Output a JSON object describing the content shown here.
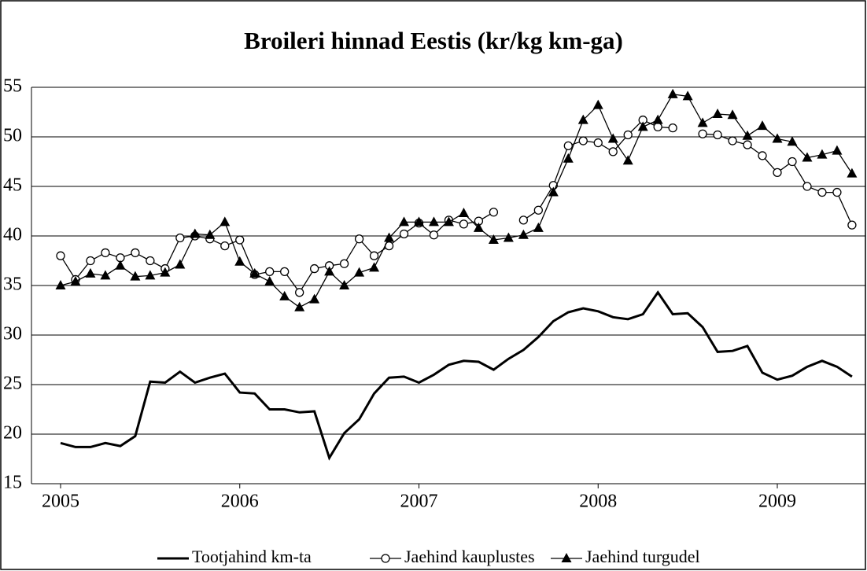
{
  "chart_data": {
    "type": "line",
    "title": "Broileri hinnad Eestis (kr/kg km-ga)",
    "categories": [
      "2005",
      null,
      null,
      null,
      null,
      null,
      null,
      null,
      null,
      null,
      null,
      null,
      "2006",
      null,
      null,
      null,
      null,
      null,
      null,
      null,
      null,
      null,
      null,
      null,
      "2007",
      null,
      null,
      null,
      null,
      null,
      null,
      null,
      null,
      null,
      null,
      null,
      "2008",
      null,
      null,
      null,
      null,
      null,
      null,
      null,
      null,
      null,
      null,
      null,
      "2009",
      null,
      null,
      null,
      null,
      null
    ],
    "series": [
      {
        "name": "Tootjahind km-ta",
        "color": "#000000",
        "marker": "none",
        "values": [
          19.1,
          18.7,
          18.7,
          19.1,
          18.8,
          19.8,
          25.3,
          25.2,
          26.3,
          25.2,
          25.7,
          26.1,
          24.2,
          24.1,
          22.5,
          22.5,
          22.2,
          22.3,
          17.6,
          20.1,
          21.5,
          24.1,
          25.7,
          25.8,
          25.2,
          26.0,
          27.0,
          27.4,
          27.3,
          26.5,
          27.6,
          28.5,
          29.8,
          31.4,
          32.3,
          32.7,
          32.4,
          31.8,
          31.6,
          32.1,
          34.3,
          32.1,
          32.2,
          30.8,
          28.3,
          28.4,
          28.9,
          26.2,
          25.5,
          25.9,
          26.8,
          27.4,
          26.8,
          25.8
        ]
      },
      {
        "name": "Jaehind kauplustes",
        "color": "#000000",
        "marker": "circle",
        "values": [
          38.0,
          35.6,
          37.5,
          38.3,
          37.8,
          38.3,
          37.5,
          36.7,
          39.8,
          40.0,
          39.7,
          39.0,
          39.6,
          36.1,
          36.4,
          36.4,
          34.3,
          36.7,
          37.0,
          37.2,
          39.7,
          38.0,
          39.0,
          40.2,
          41.3,
          40.1,
          41.6,
          41.2,
          41.5,
          42.4,
          null,
          41.6,
          42.6,
          45.1,
          49.1,
          49.6,
          49.4,
          48.5,
          50.2,
          51.7,
          51.0,
          50.9,
          null,
          50.3,
          50.2,
          49.6,
          49.2,
          48.1,
          46.4,
          47.5,
          45.0,
          44.4,
          44.4,
          41.1
        ]
      },
      {
        "name": "Jaehind turgudel",
        "color": "#000000",
        "marker": "triangle",
        "values": [
          35.0,
          35.4,
          36.2,
          36.0,
          37.0,
          35.9,
          36.0,
          36.3,
          37.1,
          40.2,
          40.1,
          41.4,
          37.4,
          36.2,
          35.4,
          33.9,
          32.8,
          33.6,
          36.4,
          35.0,
          36.3,
          36.8,
          39.8,
          41.4,
          41.4,
          41.4,
          41.4,
          42.3,
          40.8,
          39.6,
          39.8,
          40.1,
          40.8,
          44.4,
          47.8,
          51.7,
          53.2,
          49.8,
          47.6,
          51.0,
          51.7,
          54.3,
          54.1,
          51.4,
          52.3,
          52.2,
          50.1,
          51.1,
          49.8,
          49.5,
          47.9,
          48.2,
          48.6,
          46.3
        ]
      }
    ],
    "ylim": [
      15,
      55
    ],
    "yticks": [
      15,
      20,
      25,
      30,
      35,
      40,
      45,
      50,
      55
    ],
    "grid": true
  }
}
